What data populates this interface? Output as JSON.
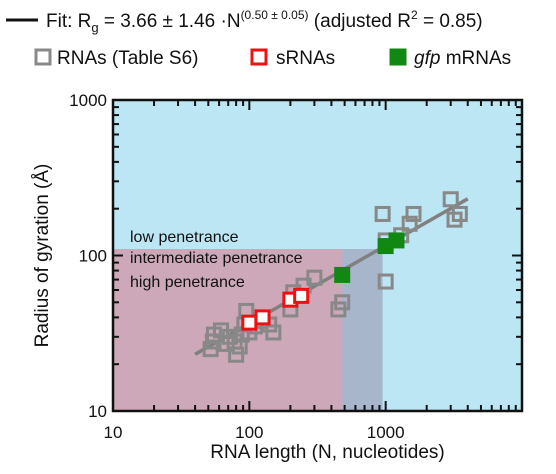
{
  "legend": {
    "fit_prefix": "Fit: R",
    "fit_sub": "g",
    "fit_mid": " = 3.66 ± 1.46 ·N",
    "fit_exp": "(0.50 ± 0.05)",
    "fit_suffix_a": " (adjusted R",
    "fit_r2_sup": "2",
    "fit_suffix_b": " = 0.85)",
    "items": [
      {
        "label": "RNAs (Table S6)",
        "label_italic": "",
        "marker": "open-square",
        "color": "#888888"
      },
      {
        "label": "sRNAs",
        "label_italic": "",
        "marker": "open-square",
        "color": "#ee1111"
      },
      {
        "label": " mRNAs",
        "label_italic": "gfp",
        "marker": "filled-square",
        "color": "#118811"
      }
    ]
  },
  "colors": {
    "background": "#bde6f5",
    "intermediate_region": "#a8b6cc",
    "high_region": "#cca8b8",
    "fit_line": "#808080",
    "rna_marker": "#888888",
    "srna_marker": "#ee1111",
    "gfp_marker": "#118811",
    "axis": "#111111"
  },
  "chart_data": {
    "type": "scatter",
    "xscale": "log",
    "yscale": "log",
    "xlim": [
      10,
      10000
    ],
    "ylim": [
      10,
      1000
    ],
    "xlabel": "RNA length (N, nucleotides)",
    "ylabel": "Radius of gyration (Å)",
    "xticks": [
      10,
      100,
      1000
    ],
    "xtick_labels": [
      "10",
      "100",
      "1000"
    ],
    "yticks": [
      10,
      100,
      1000
    ],
    "ytick_labels": [
      "10",
      "100",
      "1000"
    ],
    "regions": [
      {
        "name": "low penetrance",
        "x": [
          10,
          10000
        ],
        "y": [
          10,
          1000
        ]
      },
      {
        "name": "intermediate penetrance",
        "x": [
          10,
          950
        ],
        "y": [
          10,
          110
        ]
      },
      {
        "name": "high penetrance",
        "x": [
          10,
          480
        ],
        "y": [
          10,
          110
        ]
      }
    ],
    "fit": {
      "a": 3.66,
      "b": 0.5,
      "x_range": [
        40,
        4000
      ]
    },
    "series": [
      {
        "name": "RNAs (Table S6)",
        "marker": "open-square",
        "color": "#888888",
        "points": [
          [
            52,
            25
          ],
          [
            54,
            28
          ],
          [
            55,
            31
          ],
          [
            62,
            33
          ],
          [
            68,
            27
          ],
          [
            72,
            30
          ],
          [
            78,
            28
          ],
          [
            80,
            23
          ],
          [
            85,
            26
          ],
          [
            88,
            31
          ],
          [
            92,
            36
          ],
          [
            95,
            44
          ],
          [
            100,
            32
          ],
          [
            110,
            35
          ],
          [
            120,
            38
          ],
          [
            140,
            36
          ],
          [
            150,
            32
          ],
          [
            200,
            45
          ],
          [
            210,
            58
          ],
          [
            250,
            64
          ],
          [
            300,
            72
          ],
          [
            450,
            45
          ],
          [
            480,
            50
          ],
          [
            950,
            185
          ],
          [
            1000,
            125
          ],
          [
            1000,
            68
          ],
          [
            1300,
            135
          ],
          [
            1500,
            160
          ],
          [
            1600,
            185
          ],
          [
            3000,
            230
          ],
          [
            3200,
            170
          ],
          [
            3500,
            185
          ]
        ]
      },
      {
        "name": "sRNAs",
        "marker": "open-square",
        "color": "#ee1111",
        "points": [
          [
            100,
            37
          ],
          [
            125,
            40
          ],
          [
            200,
            52
          ],
          [
            240,
            55
          ]
        ]
      },
      {
        "name": "gfp mRNAs",
        "marker": "filled-square",
        "color": "#118811",
        "points": [
          [
            480,
            75
          ],
          [
            1000,
            115
          ],
          [
            1200,
            125
          ]
        ]
      }
    ]
  }
}
